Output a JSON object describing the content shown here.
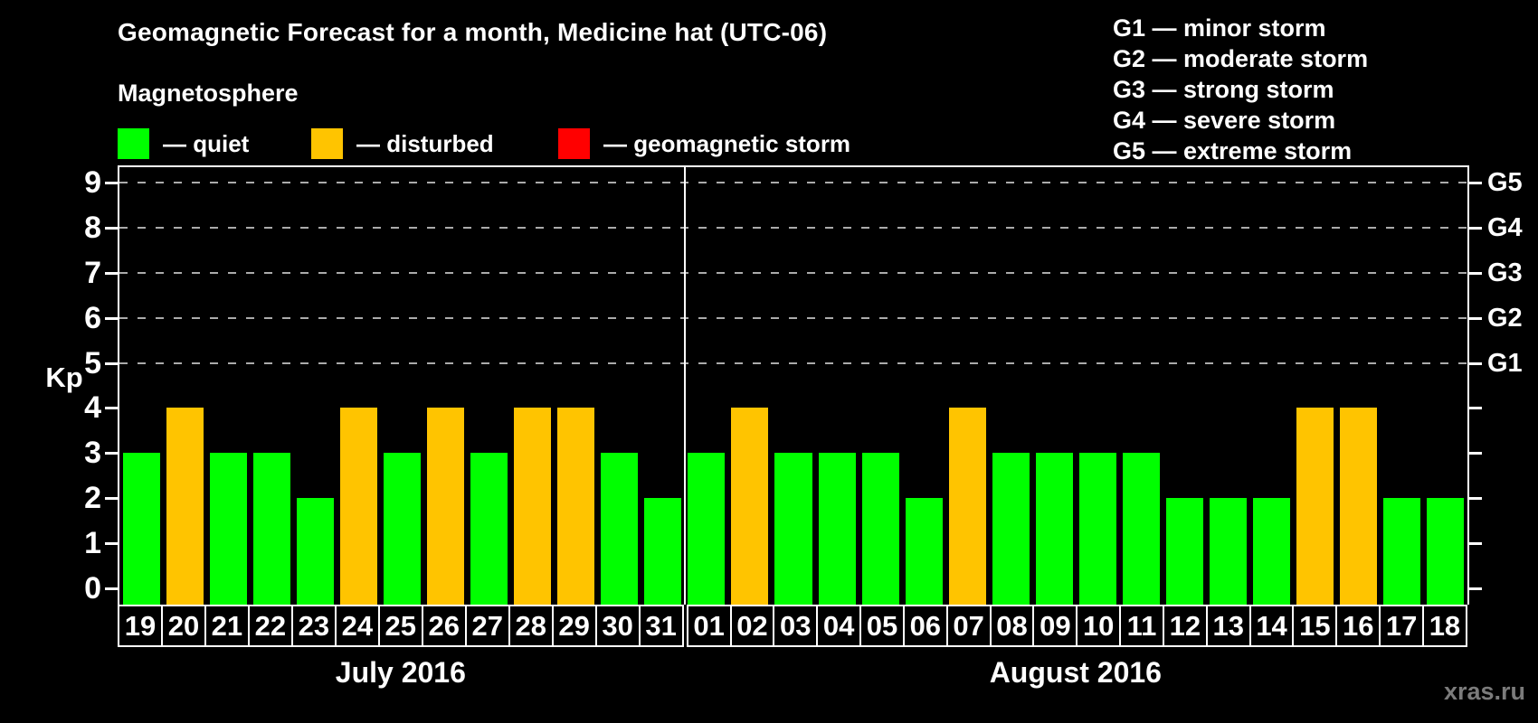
{
  "title": "Geomagnetic Forecast for a month, Medicine hat (UTC-06)",
  "legend": {
    "heading": "Magnetosphere",
    "items": [
      {
        "name": "quiet",
        "label": "— quiet",
        "color": "#00ff00"
      },
      {
        "name": "disturbed",
        "label": "— disturbed",
        "color": "#ffc400"
      },
      {
        "name": "geomagnetic-storm",
        "label": "— geomagnetic storm",
        "color": "#ff0000"
      }
    ]
  },
  "storm_scale_legend": [
    "G1 — minor storm",
    "G2 — moderate storm",
    "G3 — strong storm",
    "G4 — severe storm",
    "G5 — extreme storm"
  ],
  "chart_data": {
    "type": "bar",
    "title": "Geomagnetic Forecast for a month, Medicine hat (UTC-06)",
    "ylabel": "Kp",
    "ylim": [
      0,
      9
    ],
    "grid": "dashed horizontal at Kp 5-9",
    "yticks": [
      "0",
      "1",
      "2",
      "3",
      "4",
      "5",
      "6",
      "7",
      "8",
      "9"
    ],
    "gridlines_at": [
      5,
      6,
      7,
      8,
      9
    ],
    "right_axis": [
      {
        "kp": 5,
        "label": "G1"
      },
      {
        "kp": 6,
        "label": "G2"
      },
      {
        "kp": 7,
        "label": "G3"
      },
      {
        "kp": 8,
        "label": "G4"
      },
      {
        "kp": 9,
        "label": "G5"
      }
    ],
    "colors": {
      "quiet": "#00ff00",
      "disturbed": "#ffc400",
      "storm": "#ff0000"
    },
    "groups": [
      {
        "label": "July 2016",
        "categories": [
          "19",
          "20",
          "21",
          "22",
          "23",
          "24",
          "25",
          "26",
          "27",
          "28",
          "29",
          "30",
          "31"
        ],
        "values": [
          3,
          4,
          3,
          3,
          2,
          4,
          3,
          4,
          3,
          4,
          4,
          3,
          2
        ],
        "statuses": [
          "quiet",
          "disturbed",
          "quiet",
          "quiet",
          "quiet",
          "disturbed",
          "quiet",
          "disturbed",
          "quiet",
          "disturbed",
          "disturbed",
          "quiet",
          "quiet"
        ]
      },
      {
        "label": "August 2016",
        "categories": [
          "01",
          "02",
          "03",
          "04",
          "05",
          "06",
          "07",
          "08",
          "09",
          "10",
          "11",
          "12",
          "13",
          "14",
          "15",
          "16",
          "17",
          "18"
        ],
        "values": [
          3,
          4,
          3,
          3,
          3,
          2,
          4,
          3,
          3,
          3,
          3,
          2,
          2,
          2,
          4,
          4,
          2,
          2
        ],
        "statuses": [
          "quiet",
          "disturbed",
          "quiet",
          "quiet",
          "quiet",
          "quiet",
          "disturbed",
          "quiet",
          "quiet",
          "quiet",
          "quiet",
          "quiet",
          "quiet",
          "quiet",
          "disturbed",
          "disturbed",
          "quiet",
          "quiet"
        ]
      }
    ]
  },
  "watermark": "xras.ru"
}
